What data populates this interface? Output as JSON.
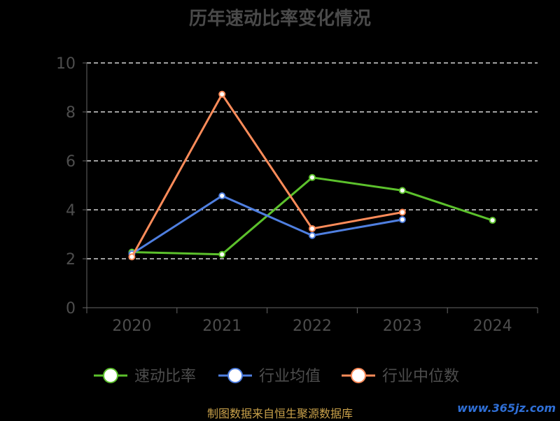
{
  "title": "历年速动比率变化情况",
  "source": "制图数据来自恒生聚源数据库",
  "watermark": "www.365jz.com",
  "colors": {
    "background": "#000000",
    "axis": "#666666",
    "tick_text": "#4d4d4d",
    "grid": "#ffffff",
    "legend_text": "#4d4d4d"
  },
  "chart_data": {
    "type": "line",
    "title": "历年速动比率变化情况",
    "categories": [
      "2020",
      "2021",
      "2022",
      "2023",
      "2024"
    ],
    "y_ticks": [
      "0",
      "2",
      "4",
      "6",
      "8",
      "10"
    ],
    "ylim": [
      0,
      10
    ],
    "grid": true,
    "legend_position": "bottom",
    "series": [
      {
        "name": "速动比率",
        "color": "#5cc12c",
        "values": [
          2.27,
          2.18,
          5.32,
          4.79,
          3.57
        ]
      },
      {
        "name": "行业均值",
        "color": "#4f7fe0",
        "values": [
          2.2,
          4.57,
          2.95,
          3.6,
          null
        ]
      },
      {
        "name": "行业中位数",
        "color": "#ff8c5a",
        "values": [
          2.08,
          8.72,
          3.23,
          3.9,
          null
        ]
      }
    ]
  }
}
